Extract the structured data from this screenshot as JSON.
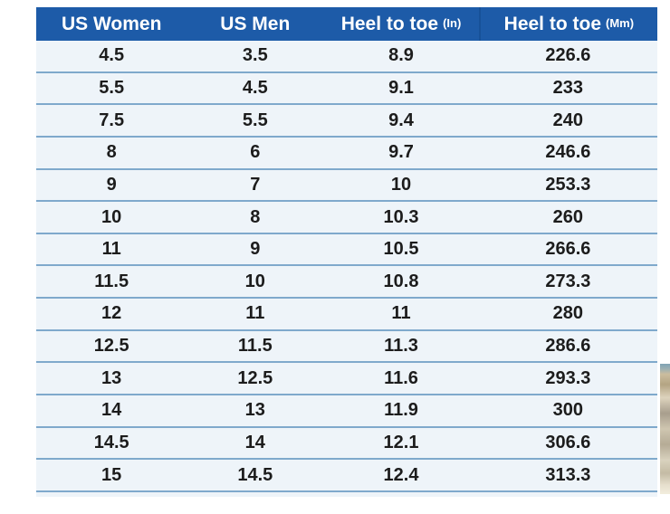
{
  "chart_data": {
    "type": "table",
    "title": "",
    "columns": [
      {
        "label": "US Women",
        "unit": ""
      },
      {
        "label": "US Men",
        "unit": ""
      },
      {
        "label": "Heel to toe",
        "unit": "(In)"
      },
      {
        "label": "Heel to toe",
        "unit": "(Mm)"
      }
    ],
    "rows": [
      [
        "4.5",
        "3.5",
        "8.9",
        "226.6"
      ],
      [
        "5.5",
        "4.5",
        "9.1",
        "233"
      ],
      [
        "7.5",
        "5.5",
        "9.4",
        "240"
      ],
      [
        "8",
        "6",
        "9.7",
        "246.6"
      ],
      [
        "9",
        "7",
        "10",
        "253.3"
      ],
      [
        "10",
        "8",
        "10.3",
        "260"
      ],
      [
        "11",
        "9",
        "10.5",
        "266.6"
      ],
      [
        "11.5",
        "10",
        "10.8",
        "273.3"
      ],
      [
        "12",
        "11",
        "11",
        "280"
      ],
      [
        "12.5",
        "11.5",
        "11.3",
        "286.6"
      ],
      [
        "13",
        "12.5",
        "11.6",
        "293.3"
      ],
      [
        "14",
        "13",
        "11.9",
        "300"
      ],
      [
        "14.5",
        "14",
        "12.1",
        "306.6"
      ],
      [
        "15",
        "14.5",
        "12.4",
        "313.3"
      ]
    ]
  },
  "colors": {
    "header_bg": "#1d5ba8",
    "header_text": "#ffffff",
    "table_bg": "#eef4f9",
    "separator": "#7fa9cc",
    "cell_text": "#1c1c1c"
  }
}
